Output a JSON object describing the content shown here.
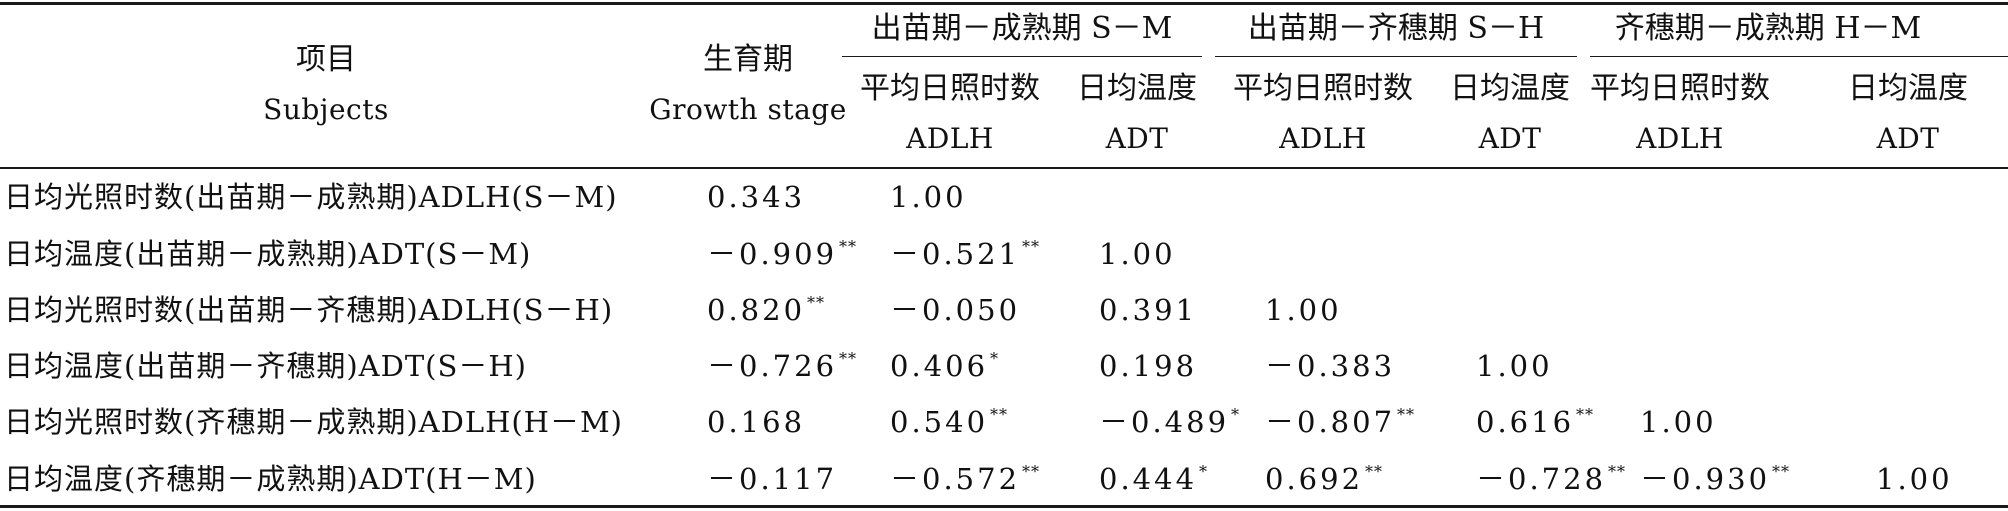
{
  "header": {
    "subjects_cn": "项目",
    "subjects_en": "Subjects",
    "stage_cn": "生育期",
    "stage_en": "Growth stage",
    "groups": [
      {
        "label": "出苗期－成熟期 S－M"
      },
      {
        "label": "出苗期－齐穗期 S－H"
      },
      {
        "label": "齐穗期－成熟期 H－M"
      }
    ],
    "sub_cn": [
      "平均日照时数",
      "日均温度",
      "平均日照时数",
      "日均温度",
      "平均日照时数",
      "日均温度"
    ],
    "sub_en": [
      "ADLH",
      "ADT",
      "ADLH",
      "ADT",
      "ADLH",
      "ADT"
    ]
  },
  "rows": [
    {
      "label": "日均光照时数(出苗期－成熟期)ADLH(S－M)",
      "cells": [
        {
          "v": "0.343",
          "s": ""
        },
        {
          "v": "1.00",
          "s": ""
        },
        {
          "v": "",
          "s": ""
        },
        {
          "v": "",
          "s": ""
        },
        {
          "v": "",
          "s": ""
        },
        {
          "v": "",
          "s": ""
        },
        {
          "v": "",
          "s": ""
        }
      ]
    },
    {
      "label": "日均温度(出苗期－成熟期)ADT(S－M)",
      "cells": [
        {
          "v": "－0.909",
          "s": "**"
        },
        {
          "v": "－0.521",
          "s": "**"
        },
        {
          "v": "1.00",
          "s": ""
        },
        {
          "v": "",
          "s": ""
        },
        {
          "v": "",
          "s": ""
        },
        {
          "v": "",
          "s": ""
        },
        {
          "v": "",
          "s": ""
        }
      ]
    },
    {
      "label": "日均光照时数(出苗期－齐穗期)ADLH(S－H)",
      "cells": [
        {
          "v": "0.820",
          "s": "**"
        },
        {
          "v": "－0.050",
          "s": ""
        },
        {
          "v": "0.391",
          "s": ""
        },
        {
          "v": "1.00",
          "s": ""
        },
        {
          "v": "",
          "s": ""
        },
        {
          "v": "",
          "s": ""
        },
        {
          "v": "",
          "s": ""
        }
      ]
    },
    {
      "label": "日均温度(出苗期－齐穗期)ADT(S－H)",
      "cells": [
        {
          "v": "－0.726",
          "s": "**"
        },
        {
          "v": "0.406",
          "s": "*"
        },
        {
          "v": "0.198",
          "s": ""
        },
        {
          "v": "－0.383",
          "s": ""
        },
        {
          "v": "1.00",
          "s": ""
        },
        {
          "v": "",
          "s": ""
        },
        {
          "v": "",
          "s": ""
        }
      ]
    },
    {
      "label": "日均光照时数(齐穗期－成熟期)ADLH(H－M)",
      "cells": [
        {
          "v": "0.168",
          "s": ""
        },
        {
          "v": "0.540",
          "s": "**"
        },
        {
          "v": "－0.489",
          "s": "*"
        },
        {
          "v": "－0.807",
          "s": "**"
        },
        {
          "v": "0.616",
          "s": "**"
        },
        {
          "v": "1.00",
          "s": ""
        },
        {
          "v": "",
          "s": ""
        }
      ]
    },
    {
      "label": "日均温度(齐穗期－成熟期)ADT(H－M)",
      "cells": [
        {
          "v": "－0.117",
          "s": ""
        },
        {
          "v": "－0.572",
          "s": "**"
        },
        {
          "v": "0.444",
          "s": "*"
        },
        {
          "v": "0.692",
          "s": "**"
        },
        {
          "v": "－0.728",
          "s": "**"
        },
        {
          "v": "－0.930",
          "s": "**"
        },
        {
          "v": "1.00",
          "s": ""
        }
      ]
    }
  ]
}
